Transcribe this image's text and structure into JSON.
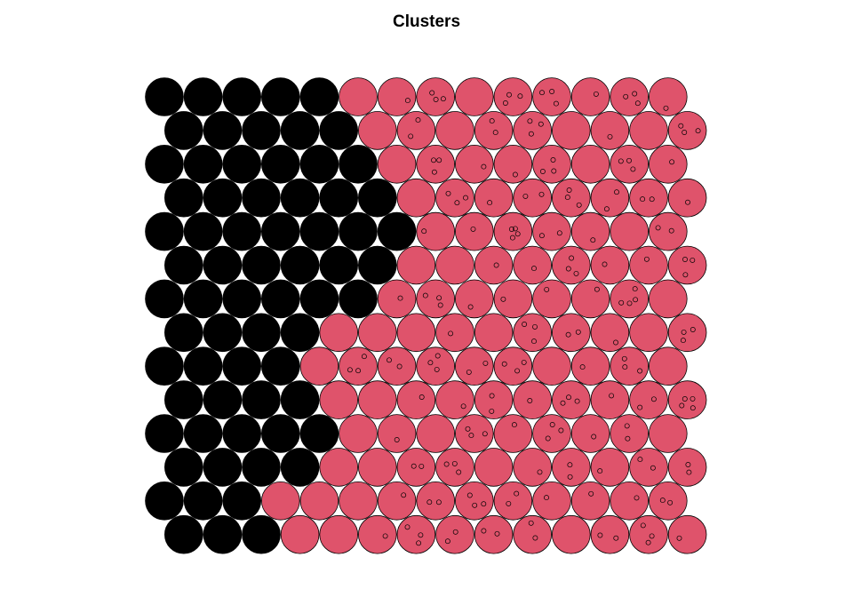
{
  "chart_data": {
    "type": "som-clusters",
    "title": "Clusters",
    "grid": {
      "rows": 14,
      "cols": 14,
      "topology": "hexagonal"
    },
    "cluster_colors": {
      "1": "#000000",
      "2": "#DF536B"
    },
    "border_color": "#000000",
    "cluster_split_col_by_row": [
      5,
      5,
      6,
      6,
      7,
      6,
      6,
      4,
      4,
      4,
      5,
      4,
      3,
      3
    ],
    "point_counts_by_row": [
      [
        0,
        0,
        0,
        0,
        0,
        0,
        1,
        3,
        0,
        3,
        3,
        1,
        3,
        1
      ],
      [
        0,
        0,
        0,
        0,
        0,
        0,
        2,
        0,
        2,
        3,
        0,
        1,
        0,
        3
      ],
      [
        0,
        0,
        0,
        0,
        0,
        0,
        0,
        3,
        1,
        1,
        3,
        0,
        3,
        1
      ],
      [
        0,
        0,
        0,
        0,
        0,
        0,
        0,
        3,
        1,
        2,
        3,
        2,
        2,
        1
      ],
      [
        0,
        0,
        0,
        0,
        0,
        0,
        0,
        1,
        1,
        4,
        2,
        1,
        0,
        2
      ],
      [
        0,
        0,
        0,
        0,
        0,
        0,
        0,
        0,
        1,
        1,
        3,
        1,
        1,
        3
      ],
      [
        0,
        0,
        0,
        0,
        0,
        0,
        1,
        3,
        1,
        1,
        1,
        1,
        4,
        0
      ],
      [
        0,
        0,
        0,
        0,
        0,
        0,
        0,
        1,
        0,
        3,
        2,
        1,
        0,
        3
      ],
      [
        0,
        0,
        0,
        0,
        0,
        3,
        2,
        3,
        2,
        3,
        0,
        1,
        3,
        0
      ],
      [
        0,
        0,
        0,
        0,
        0,
        0,
        1,
        1,
        2,
        1,
        3,
        1,
        2,
        4
      ],
      [
        0,
        0,
        0,
        0,
        0,
        0,
        1,
        0,
        3,
        1,
        3,
        1,
        2,
        0
      ],
      [
        0,
        0,
        0,
        0,
        0,
        0,
        2,
        3,
        0,
        1,
        2,
        1,
        2,
        2
      ],
      [
        0,
        0,
        0,
        0,
        0,
        0,
        1,
        2,
        3,
        2,
        1,
        1,
        1,
        2
      ],
      [
        0,
        0,
        0,
        0,
        0,
        1,
        3,
        2,
        2,
        2,
        0,
        2,
        3,
        1
      ]
    ]
  }
}
